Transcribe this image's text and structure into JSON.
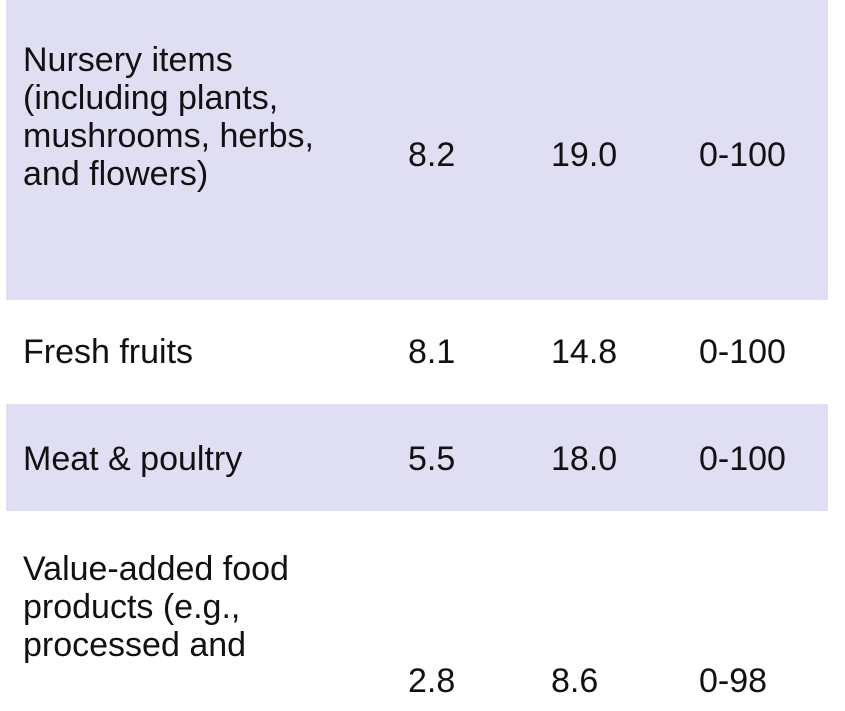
{
  "table": {
    "rows": [
      {
        "label": "Nursery items (including plants, mushrooms, herbs, and flowers)",
        "col1": "8.2",
        "col2": "19.0",
        "col3": "0-100"
      },
      {
        "label": "Fresh fruits",
        "col1": "8.1",
        "col2": "14.8",
        "col3": "0-100"
      },
      {
        "label": "Meat & poultry",
        "col1": "5.5",
        "col2": "18.0",
        "col3": "0-100"
      },
      {
        "label": "Value-added food products (e.g., processed and",
        "col1": "2.8",
        "col2": "8.6",
        "col3": "0-98"
      }
    ]
  },
  "colors": {
    "shaded_row": "#e0def3",
    "text": "#111111"
  }
}
